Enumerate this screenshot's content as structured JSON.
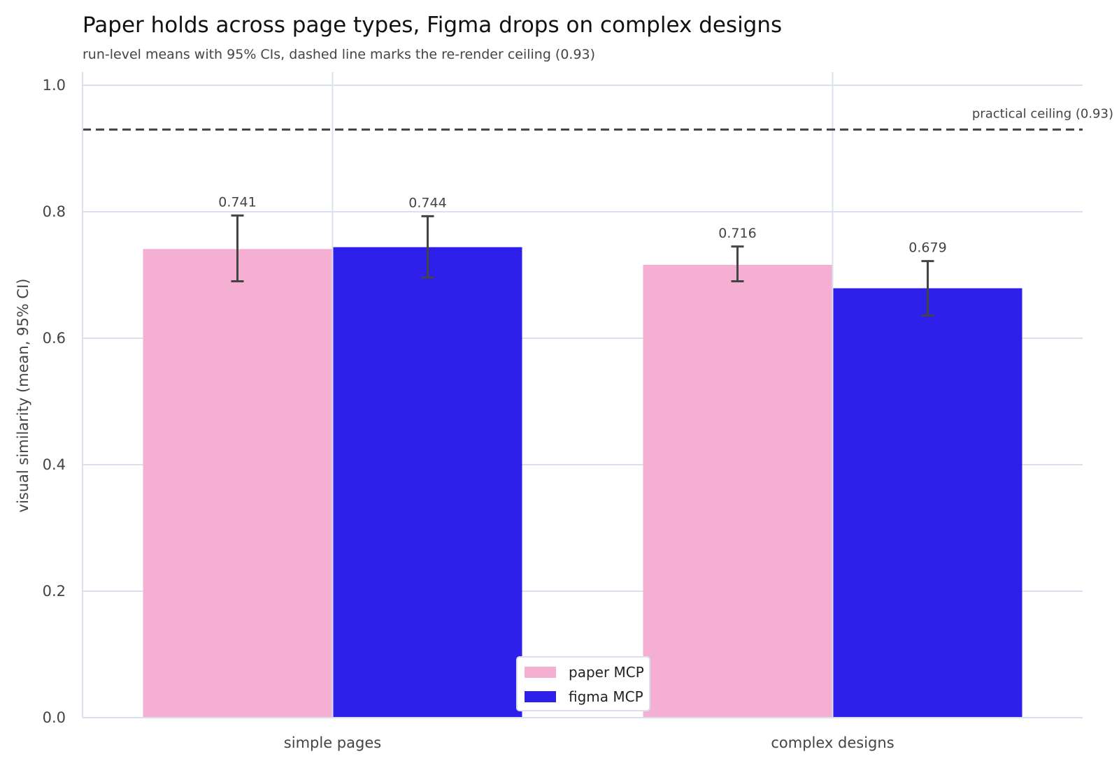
{
  "chart_data": {
    "type": "bar",
    "title": "Paper holds across page types, Figma drops on complex designs",
    "subtitle": "run-level means with 95% CIs, dashed line marks the re-render ceiling (0.93)",
    "xlabel": "",
    "ylabel": "visual similarity (mean, 95% CI)",
    "ylim": [
      0,
      1.0
    ],
    "yticks": [
      0.0,
      0.2,
      0.4,
      0.6,
      0.8,
      1.0
    ],
    "ytick_labels": [
      "0.0",
      "0.2",
      "0.4",
      "0.6",
      "0.8",
      "1.0"
    ],
    "categories": [
      "simple pages",
      "complex designs"
    ],
    "series": [
      {
        "name": "paper MCP",
        "color": "#f4afd2",
        "values": [
          0.741,
          0.716
        ],
        "value_labels": [
          "0.741",
          "0.716"
        ],
        "ci_low": [
          0.69,
          0.69
        ],
        "ci_high": [
          0.794,
          0.745
        ]
      },
      {
        "name": "figma MCP",
        "color": "#2e20ea",
        "values": [
          0.744,
          0.679
        ],
        "value_labels": [
          "0.744",
          "0.679"
        ],
        "ci_low": [
          0.696,
          0.636
        ],
        "ci_high": [
          0.793,
          0.722
        ]
      }
    ],
    "reference_line": {
      "value": 0.93,
      "label": "practical ceiling (0.93)",
      "style": "dashed"
    },
    "grid": true,
    "legend_position": "bottom-center"
  }
}
